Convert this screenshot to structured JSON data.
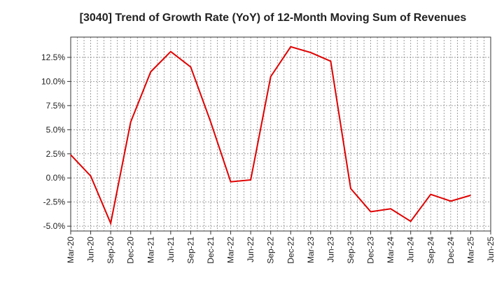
{
  "chart_data": {
    "type": "line",
    "title": "[3040]  Trend of Growth Rate (YoY) of 12-Month Moving Sum of Revenues",
    "xlabel": "",
    "ylabel": "",
    "x_tick_labels": [
      "Mar-20",
      "Jun-20",
      "Sep-20",
      "Dec-20",
      "Mar-21",
      "Jun-21",
      "Sep-21",
      "Dec-21",
      "Mar-22",
      "Jun-22",
      "Sep-22",
      "Dec-22",
      "Mar-23",
      "Jun-23",
      "Sep-23",
      "Dec-23",
      "Mar-24",
      "Jun-24",
      "Sep-24",
      "Dec-24",
      "Mar-25",
      "Jun-25"
    ],
    "y_ticks": [
      {
        "value": -5.0,
        "label": "-5.0%"
      },
      {
        "value": -2.5,
        "label": "-2.5%"
      },
      {
        "value": 0.0,
        "label": "0.0%"
      },
      {
        "value": 2.5,
        "label": "2.5%"
      },
      {
        "value": 5.0,
        "label": "5.0%"
      },
      {
        "value": 7.5,
        "label": "7.5%"
      },
      {
        "value": 10.0,
        "label": "10.0%"
      },
      {
        "value": 12.5,
        "label": "12.5%"
      }
    ],
    "ylim": [
      -5.5,
      14.6
    ],
    "grid": true,
    "series": [
      {
        "color": "#e00000",
        "x": [
          "Mar-20",
          "Jun-20",
          "Sep-20",
          "Dec-20",
          "Mar-21",
          "Jun-21",
          "Sep-21",
          "Dec-21",
          "Mar-22",
          "Jun-22",
          "Sep-22",
          "Dec-22",
          "Mar-23",
          "Jun-23",
          "Sep-23",
          "Dec-23",
          "Mar-24",
          "Jun-24",
          "Sep-24",
          "Dec-24",
          "Mar-25"
        ],
        "values": [
          2.4,
          0.2,
          -4.7,
          5.8,
          11.0,
          13.1,
          11.5,
          5.8,
          -0.4,
          -0.2,
          10.5,
          13.6,
          13.0,
          12.1,
          -1.1,
          -3.5,
          -3.2,
          -4.5,
          -1.7,
          -2.4,
          -1.8
        ]
      }
    ]
  }
}
